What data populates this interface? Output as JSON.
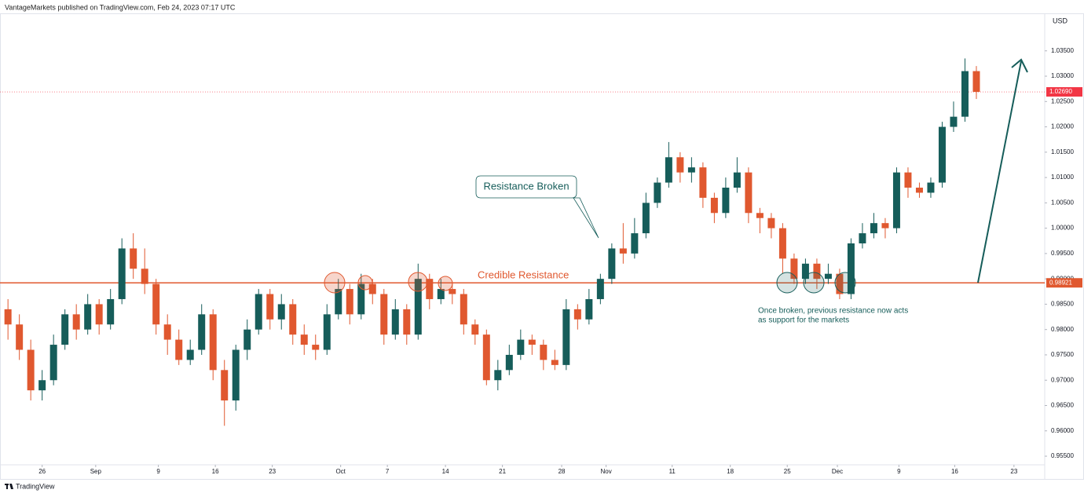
{
  "header": {
    "text": "VantageMarkets published on TradingView.com, Feb 24, 2023 07:17 UTC"
  },
  "footer": {
    "brand": "TradingView"
  },
  "chart_data": {
    "type": "candlestick",
    "currency": "USD",
    "up_color": "#165d5a",
    "down_color": "#e0582f",
    "open": [
      0.984,
      0.981,
      0.976,
      0.968,
      0.97,
      0.977,
      0.983,
      0.98,
      0.985,
      0.981,
      0.986,
      0.996,
      0.992,
      0.989,
      0.981,
      0.978,
      0.974,
      0.976,
      0.983,
      0.972,
      0.966,
      0.976,
      0.98,
      0.987,
      0.982,
      0.985,
      0.979,
      0.977,
      0.976,
      0.983,
      0.988,
      0.983,
      0.989,
      0.987,
      0.979,
      0.984,
      0.979,
      0.99,
      0.986,
      0.988,
      0.987,
      0.981,
      0.979,
      0.97,
      0.972,
      0.975,
      0.978,
      0.977,
      0.974,
      0.973,
      0.984,
      0.982,
      0.986,
      0.99,
      0.996,
      0.995,
      0.999,
      1.005,
      1.009,
      1.014,
      1.011,
      1.012,
      1.006,
      1.003,
      1.008,
      1.011,
      1.003,
      1.002,
      1.0,
      0.994,
      0.99,
      0.993,
      0.99,
      0.991,
      0.987,
      0.997,
      0.999,
      1.001,
      1.0,
      1.011,
      1.008,
      1.007,
      1.009,
      1.02,
      1.022,
      1.031
    ],
    "high": [
      0.986,
      0.983,
      0.978,
      0.972,
      0.979,
      0.984,
      0.985,
      0.987,
      0.986,
      0.988,
      0.998,
      0.999,
      0.996,
      0.99,
      0.983,
      0.98,
      0.978,
      0.985,
      0.984,
      0.974,
      0.977,
      0.982,
      0.988,
      0.988,
      0.987,
      0.986,
      0.981,
      0.979,
      0.985,
      0.99,
      0.989,
      0.991,
      0.99,
      0.988,
      0.986,
      0.985,
      0.993,
      0.991,
      0.99,
      0.989,
      0.988,
      0.982,
      0.98,
      0.974,
      0.977,
      0.98,
      0.979,
      0.978,
      0.976,
      0.986,
      0.985,
      0.988,
      0.991,
      0.997,
      1.001,
      1.002,
      1.007,
      1.01,
      1.017,
      1.015,
      1.014,
      1.013,
      1.007,
      1.01,
      1.014,
      1.012,
      1.004,
      1.003,
      1.001,
      0.995,
      0.994,
      0.994,
      0.993,
      0.992,
      0.998,
      1.001,
      1.003,
      1.002,
      1.012,
      1.012,
      1.009,
      1.01,
      1.021,
      1.025,
      1.0335,
      1.032
    ],
    "low": [
      0.978,
      0.974,
      0.966,
      0.966,
      0.969,
      0.976,
      0.978,
      0.979,
      0.979,
      0.98,
      0.985,
      0.99,
      0.987,
      0.979,
      0.975,
      0.973,
      0.973,
      0.975,
      0.97,
      0.961,
      0.964,
      0.974,
      0.979,
      0.98,
      0.98,
      0.977,
      0.975,
      0.974,
      0.975,
      0.982,
      0.981,
      0.982,
      0.985,
      0.977,
      0.978,
      0.977,
      0.978,
      0.984,
      0.985,
      0.985,
      0.979,
      0.977,
      0.969,
      0.968,
      0.971,
      0.974,
      0.975,
      0.972,
      0.972,
      0.972,
      0.98,
      0.981,
      0.985,
      0.989,
      0.993,
      0.994,
      0.998,
      1.004,
      1.008,
      1.009,
      1.009,
      1.004,
      1.001,
      1.002,
      1.007,
      1.001,
      0.999,
      0.998,
      0.991,
      0.989,
      0.989,
      0.988,
      0.989,
      0.986,
      0.986,
      0.996,
      0.998,
      0.998,
      0.999,
      1.006,
      1.006,
      1.006,
      1.008,
      1.019,
      1.021,
      1.0255
    ],
    "close": [
      0.981,
      0.976,
      0.968,
      0.97,
      0.977,
      0.983,
      0.98,
      0.985,
      0.981,
      0.986,
      0.996,
      0.992,
      0.989,
      0.981,
      0.978,
      0.974,
      0.976,
      0.983,
      0.972,
      0.966,
      0.976,
      0.98,
      0.987,
      0.982,
      0.985,
      0.979,
      0.977,
      0.976,
      0.983,
      0.988,
      0.983,
      0.989,
      0.987,
      0.979,
      0.984,
      0.979,
      0.99,
      0.986,
      0.988,
      0.987,
      0.981,
      0.979,
      0.97,
      0.972,
      0.975,
      0.978,
      0.977,
      0.974,
      0.973,
      0.984,
      0.982,
      0.986,
      0.99,
      0.996,
      0.995,
      0.999,
      1.005,
      1.009,
      1.014,
      1.011,
      1.012,
      1.006,
      1.003,
      1.008,
      1.011,
      1.003,
      1.002,
      1.0,
      0.994,
      0.99,
      0.993,
      0.99,
      0.991,
      0.987,
      0.997,
      0.999,
      1.001,
      1.0,
      1.011,
      1.008,
      1.007,
      1.009,
      1.02,
      1.022,
      1.031,
      1.0269
    ],
    "xlim": [
      -0.7,
      91
    ],
    "xticks": [
      {
        "value": 3,
        "label": "26"
      },
      {
        "value": 7.7,
        "label": "Sep"
      },
      {
        "value": 13.2,
        "label": "9"
      },
      {
        "value": 18.2,
        "label": "16"
      },
      {
        "value": 23.2,
        "label": "23"
      },
      {
        "value": 29.2,
        "label": "Oct"
      },
      {
        "value": 33.3,
        "label": "7"
      },
      {
        "value": 38.4,
        "label": "14"
      },
      {
        "value": 43.4,
        "label": "21"
      },
      {
        "value": 48.6,
        "label": "28"
      },
      {
        "value": 52.5,
        "label": "Nov"
      },
      {
        "value": 58.3,
        "label": "11"
      },
      {
        "value": 63.4,
        "label": "18"
      },
      {
        "value": 68.4,
        "label": "25"
      },
      {
        "value": 72.8,
        "label": "Dec"
      },
      {
        "value": 78.2,
        "label": "9"
      },
      {
        "value": 83.1,
        "label": "16"
      },
      {
        "value": 88.3,
        "label": "23"
      }
    ],
    "ylim": [
      0.9533,
      1.0424
    ],
    "yticks": [
      {
        "value": 0.955,
        "label": "0.95500"
      },
      {
        "value": 0.96,
        "label": "0.96000"
      },
      {
        "value": 0.965,
        "label": "0.96500"
      },
      {
        "value": 0.97,
        "label": "0.97000"
      },
      {
        "value": 0.975,
        "label": "0.97500"
      },
      {
        "value": 0.98,
        "label": "0.98000"
      },
      {
        "value": 0.985,
        "label": "0.98500"
      },
      {
        "value": 0.99,
        "label": "0.99000"
      },
      {
        "value": 0.995,
        "label": "0.99500"
      },
      {
        "value": 1.0,
        "label": "1.00000"
      },
      {
        "value": 1.005,
        "label": "1.00500"
      },
      {
        "value": 1.01,
        "label": "1.01000"
      },
      {
        "value": 1.015,
        "label": "1.01500"
      },
      {
        "value": 1.02,
        "label": "1.02000"
      },
      {
        "value": 1.025,
        "label": "1.02500"
      },
      {
        "value": 1.03,
        "label": "1.03000"
      },
      {
        "value": 1.035,
        "label": "1.03500"
      }
    ],
    "resistance": {
      "value": 0.98921,
      "label": "0.98921",
      "name": "Credible Resistance",
      "color": "#e0582f"
    },
    "current_price": {
      "value": 1.0269,
      "label": "1.02690",
      "color": "#f23645"
    },
    "annotations": {
      "broken": "Resistance Broken",
      "support_line1": "Once broken, previous resistance now acts",
      "support_line2": "as support for the markets"
    }
  }
}
